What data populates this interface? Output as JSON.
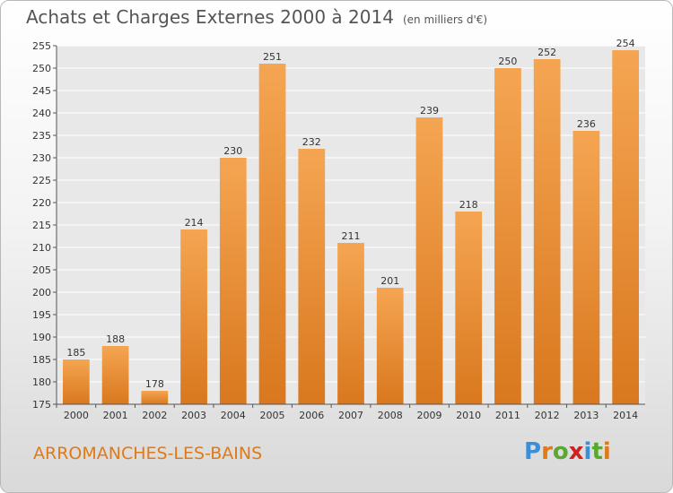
{
  "title": "Achats et Charges Externes 2000 à 2014",
  "subtitle": "(en milliers d'€)",
  "footer": {
    "city": "ARROMANCHES-LES-BAINS"
  },
  "logo": {
    "text": "Proxiti",
    "letters": [
      "P",
      "r",
      "o",
      "x",
      "i",
      "t",
      "i"
    ],
    "colors": [
      "#3a8fd8",
      "#e07a17",
      "#5aa832",
      "#d02020",
      "#3a8fd8",
      "#5aa832",
      "#e07a17"
    ]
  },
  "colors": {
    "bar_light": "#f5a552",
    "bar_dark": "#d9781e",
    "label": "#333333",
    "grid": "#ffffff"
  },
  "chart_data": {
    "type": "bar",
    "title": "Achats et Charges Externes 2000 à 2014",
    "subtitle": "(en milliers d'€)",
    "xlabel": "",
    "ylabel": "",
    "categories": [
      "2000",
      "2001",
      "2002",
      "2003",
      "2004",
      "2005",
      "2006",
      "2007",
      "2008",
      "2009",
      "2010",
      "2011",
      "2012",
      "2013",
      "2014"
    ],
    "values": [
      185,
      188,
      178,
      214,
      230,
      251,
      232,
      211,
      201,
      239,
      218,
      250,
      252,
      236,
      254
    ],
    "ylim": [
      175,
      255
    ],
    "yticks": [
      175,
      180,
      185,
      190,
      195,
      200,
      205,
      210,
      215,
      220,
      225,
      230,
      235,
      240,
      245,
      250,
      255
    ],
    "grid": true,
    "legend": "none"
  }
}
